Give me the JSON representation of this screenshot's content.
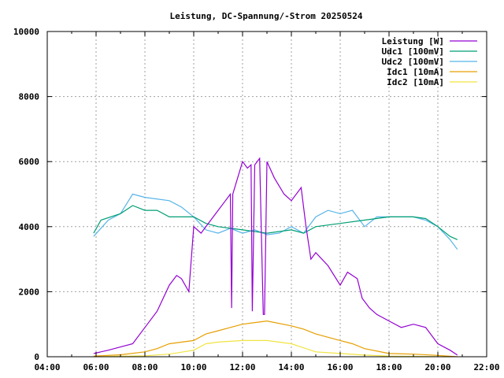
{
  "chart_data": {
    "type": "line",
    "title": "Leistung, DC-Spannung/-Strom 20250524",
    "xlabel": "",
    "ylabel": "",
    "xlim": [
      4,
      22
    ],
    "ylim": [
      0,
      10000
    ],
    "grid": true,
    "legend_placement": "top-right",
    "x_ticks": [
      {
        "value": 4,
        "label": "04:00"
      },
      {
        "value": 6,
        "label": "06:00"
      },
      {
        "value": 8,
        "label": "08:00"
      },
      {
        "value": 10,
        "label": "10:00"
      },
      {
        "value": 12,
        "label": "12:00"
      },
      {
        "value": 14,
        "label": "14:00"
      },
      {
        "value": 16,
        "label": "16:00"
      },
      {
        "value": 18,
        "label": "18:00"
      },
      {
        "value": 20,
        "label": "20:00"
      },
      {
        "value": 22,
        "label": "22:00"
      }
    ],
    "y_ticks": [
      {
        "value": 0,
        "label": "0"
      },
      {
        "value": 2000,
        "label": "2000"
      },
      {
        "value": 4000,
        "label": "4000"
      },
      {
        "value": 6000,
        "label": "6000"
      },
      {
        "value": 8000,
        "label": "8000"
      },
      {
        "value": 10000,
        "label": "10000"
      }
    ],
    "series": [
      {
        "name": "Leistung [W]",
        "color": "#9400d3",
        "x": [
          5.9,
          6.5,
          7.0,
          7.5,
          8.0,
          8.5,
          9.0,
          9.3,
          9.5,
          9.8,
          10.0,
          10.3,
          10.7,
          11.0,
          11.3,
          11.5,
          11.55,
          11.6,
          11.8,
          12.0,
          12.2,
          12.35,
          12.4,
          12.5,
          12.7,
          12.85,
          12.9,
          13.0,
          13.3,
          13.7,
          14.0,
          14.4,
          14.6,
          14.8,
          15.0,
          15.5,
          16.0,
          16.3,
          16.7,
          16.9,
          17.2,
          17.5,
          18.0,
          18.5,
          19.0,
          19.5,
          20.0,
          20.5,
          20.8
        ],
        "y": [
          100,
          200,
          300,
          400,
          900,
          1400,
          2200,
          2500,
          2400,
          2000,
          4000,
          3800,
          4200,
          4500,
          4800,
          5000,
          1500,
          5000,
          5500,
          6000,
          5800,
          5900,
          1400,
          5900,
          6100,
          1300,
          1300,
          6000,
          5500,
          5000,
          4800,
          5200,
          4000,
          3000,
          3200,
          2800,
          2200,
          2600,
          2400,
          1800,
          1500,
          1300,
          1100,
          900,
          1000,
          900,
          400,
          200,
          50
        ]
      },
      {
        "name": "Udc1 [100mV]",
        "color": "#009e73",
        "x": [
          5.9,
          6.2,
          7.0,
          7.5,
          8.0,
          8.5,
          9.0,
          9.5,
          10.0,
          10.5,
          11.0,
          12.0,
          13.0,
          14.0,
          14.5,
          15.0,
          16.0,
          17.0,
          18.0,
          19.0,
          19.5,
          20.0,
          20.5,
          20.8
        ],
        "y": [
          3800,
          4200,
          4400,
          4650,
          4500,
          4500,
          4300,
          4300,
          4300,
          4100,
          4000,
          3900,
          3800,
          3900,
          3800,
          4000,
          4100,
          4200,
          4300,
          4300,
          4250,
          4000,
          3700,
          3600
        ]
      },
      {
        "name": "Udc2 [100mV]",
        "color": "#56b4e9",
        "x": [
          5.9,
          6.5,
          7.0,
          7.5,
          8.0,
          9.0,
          9.5,
          10.0,
          10.5,
          11.0,
          11.5,
          12.0,
          12.5,
          13.0,
          13.5,
          14.0,
          14.5,
          15.0,
          15.5,
          16.0,
          16.5,
          17.0,
          17.5,
          18.0,
          19.0,
          19.5,
          20.0,
          20.5,
          20.8
        ],
        "y": [
          3700,
          4200,
          4400,
          5000,
          4900,
          4800,
          4600,
          4300,
          3900,
          3800,
          3950,
          3800,
          3900,
          3750,
          3800,
          4000,
          3800,
          4300,
          4500,
          4400,
          4500,
          4000,
          4300,
          4300,
          4300,
          4200,
          4000,
          3600,
          3300
        ]
      },
      {
        "name": "Idc1 [10mA]",
        "color": "#e69f00",
        "x": [
          5.9,
          7.0,
          8.0,
          8.5,
          9.0,
          10.0,
          10.5,
          11.0,
          11.5,
          12.0,
          12.5,
          13.0,
          14.0,
          14.5,
          15.0,
          16.0,
          16.5,
          17.0,
          18.0,
          19.0,
          20.0,
          20.8
        ],
        "y": [
          20,
          60,
          150,
          250,
          400,
          500,
          700,
          800,
          900,
          1000,
          1050,
          1100,
          950,
          850,
          700,
          500,
          400,
          250,
          100,
          80,
          40,
          0
        ]
      },
      {
        "name": "Idc2 [10mA]",
        "color": "#f0e442",
        "x": [
          5.9,
          8.0,
          9.0,
          10.0,
          10.5,
          11.0,
          12.0,
          13.0,
          14.0,
          15.0,
          16.0,
          17.0,
          18.0,
          20.5
        ],
        "y": [
          0,
          30,
          80,
          200,
          400,
          450,
          500,
          500,
          400,
          150,
          100,
          50,
          20,
          0
        ]
      }
    ]
  }
}
